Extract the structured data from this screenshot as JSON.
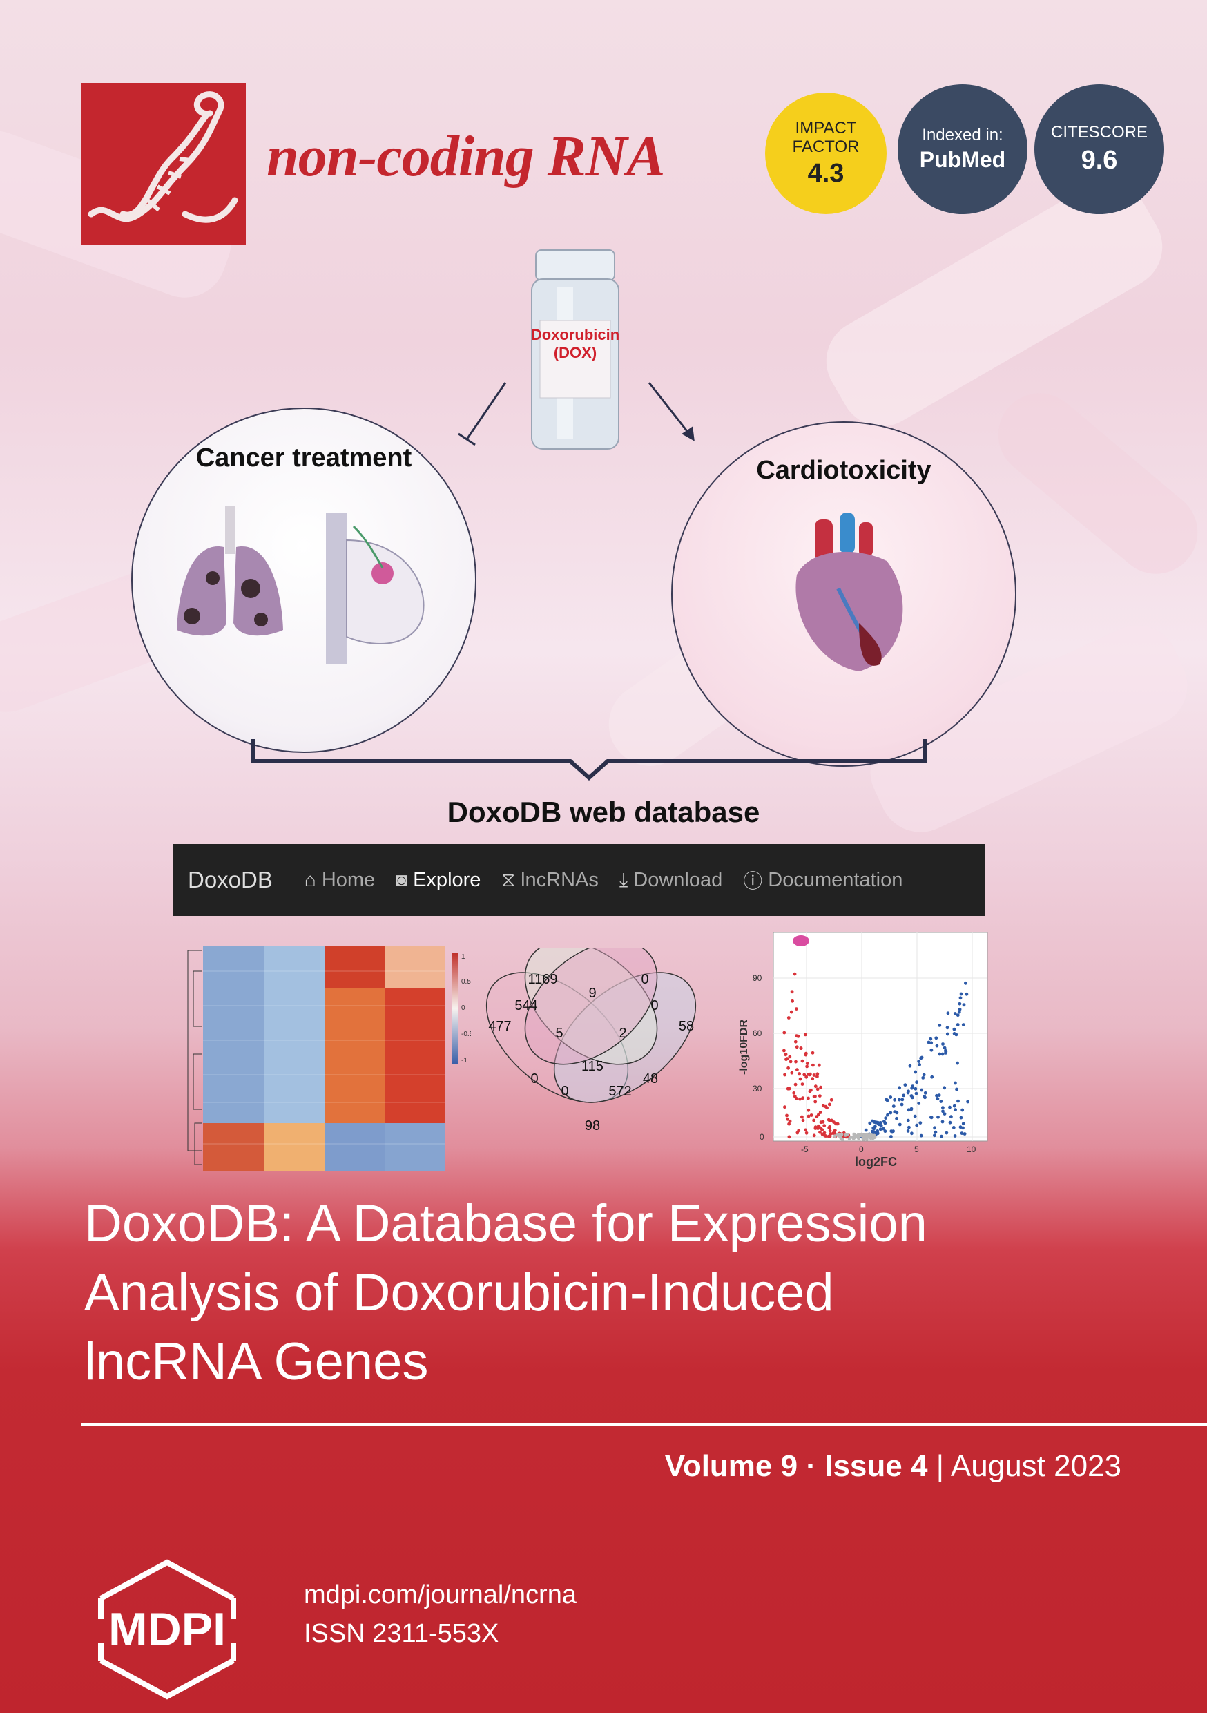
{
  "journal": {
    "title": "non-coding RNA",
    "logo": "dna-helix-icon"
  },
  "badges": {
    "impact": {
      "line1": "IMPACT",
      "line2": "FACTOR",
      "value": "4.3"
    },
    "indexed": {
      "label": "Indexed in:",
      "value": "PubMed"
    },
    "citescore": {
      "label": "CITESCORE",
      "value": "9.6"
    }
  },
  "figure": {
    "bottle_label_1": "Doxorubicin",
    "bottle_label_2": "(DOX)",
    "left_circle": "Cancer treatment",
    "right_circle": "Cardiotoxicity",
    "db_label": "DoxoDB web database",
    "navbar": {
      "brand": "DoxoDB",
      "items": [
        {
          "label": "Home",
          "icon": "home-icon"
        },
        {
          "label": "Explore",
          "icon": "binoculars-icon"
        },
        {
          "label": "lncRNAs",
          "icon": "dna-icon"
        },
        {
          "label": "Download",
          "icon": "download-icon"
        },
        {
          "label": "Documentation",
          "icon": "info-icon"
        }
      ]
    },
    "heatmap_scale": [
      "1",
      "0.5",
      "0",
      "-0.5",
      "-1"
    ],
    "venn_values": [
      "1169",
      "9",
      "0",
      "544",
      "0",
      "477",
      "5",
      "2",
      "58",
      "115",
      "0",
      "0",
      "572",
      "48",
      "98"
    ],
    "volcano": {
      "ylabel": "-log10FDR",
      "xlabel": "log2FC",
      "yticks": [
        "90",
        "60",
        "30",
        "0"
      ],
      "xticks": [
        "-5",
        "0",
        "5",
        "10"
      ]
    }
  },
  "article": {
    "title_lines": [
      "DoxoDB: A Database for Expression",
      "Analysis of Doxorubicin-Induced",
      "lncRNA Genes"
    ]
  },
  "issue": {
    "volume": "Volume 9",
    "sep": "·",
    "issue": "Issue 4",
    "divider": "|",
    "date": "August 2023"
  },
  "publisher": {
    "name": "MDPI",
    "url": "mdpi.com/journal/ncrna",
    "issn": "ISSN 2311-553X"
  },
  "colors": {
    "brand_red": "#c4262e",
    "badge_yellow": "#f5cf1c",
    "badge_navy": "#3b4a63"
  }
}
